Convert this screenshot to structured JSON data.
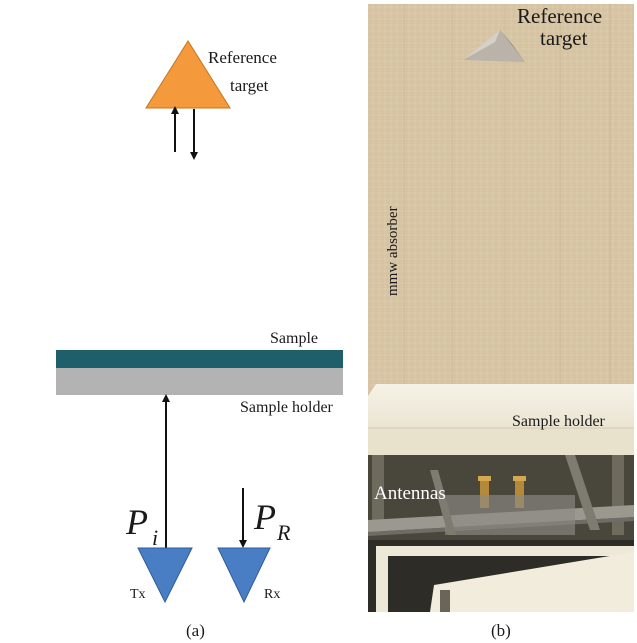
{
  "panel_a": {
    "reference_target_label_line1": "Reference",
    "reference_target_label_line2": "target",
    "sample_label": "Sample",
    "sample_holder_label": "Sample holder",
    "pi_main": "P",
    "pi_sub": "i",
    "pr_main": "P",
    "pr_sub": "R",
    "tx_label": "Tx",
    "rx_label": "Rx",
    "caption": "(a)",
    "colors": {
      "target": "#F59A3C",
      "sample": "#1E5F6B",
      "holder": "#B3B3B3",
      "antenna": "#4A7EC4",
      "arrow": "#111111"
    }
  },
  "panel_b": {
    "reference_target_label_line1": "Reference",
    "reference_target_label_line2": "target",
    "absorber_label": "mmw absorber",
    "sample_holder_label": "Sample holder",
    "antennas_label": "Antennas",
    "caption": "(b)",
    "colors": {
      "absorber": "#D8C7A6",
      "holder": "#EFEAD8",
      "frame": "#3C3A33"
    }
  }
}
